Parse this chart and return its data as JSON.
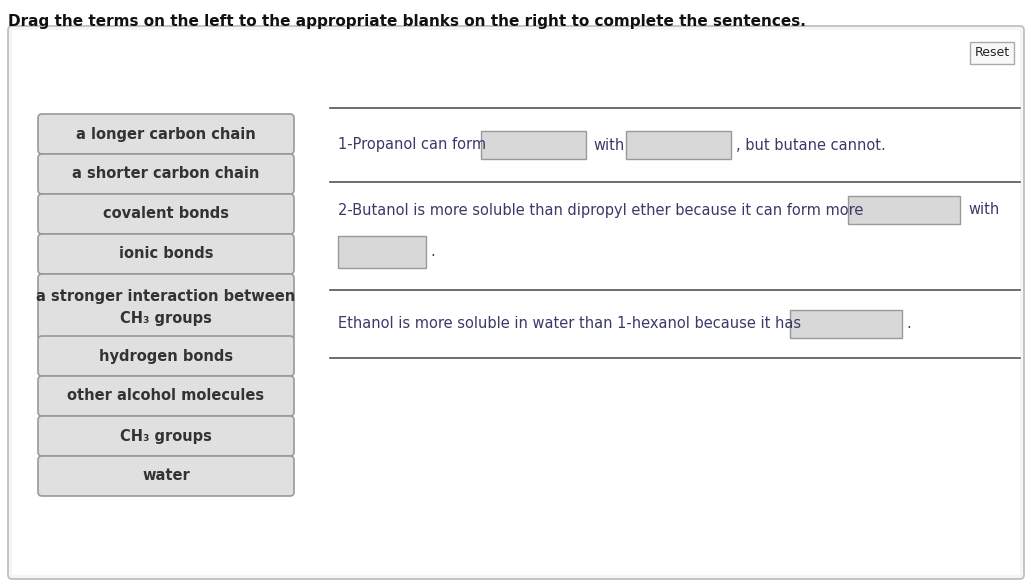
{
  "title": "Drag the terms on the left to the appropriate blanks on the right to complete the sentences.",
  "reset_label": "Reset",
  "bg_color": "#ffffff",
  "panel_bg": "#ffffff",
  "panel_border": "#bbbbbb",
  "left_terms": [
    "a longer carbon chain",
    "a shorter carbon chain",
    "covalent bonds",
    "ionic bonds",
    "a stronger interaction between\nCH₃ groups",
    "hydrogen bonds",
    "other alcohol molecules",
    "CH₃ groups",
    "water"
  ],
  "term_box_color": "#e0e0e0",
  "term_box_border": "#999999",
  "term_text_color": "#333333",
  "sentence_text_color": "#3a3a6a",
  "blank_box_color": "#d8d8d8",
  "blank_box_border": "#999999",
  "section_line_color": "#555555",
  "reset_border": "#aaaaaa",
  "reset_bg": "#f8f8f8",
  "title_fontsize": 11,
  "term_fontsize": 10.5,
  "sentence_fontsize": 10.5
}
